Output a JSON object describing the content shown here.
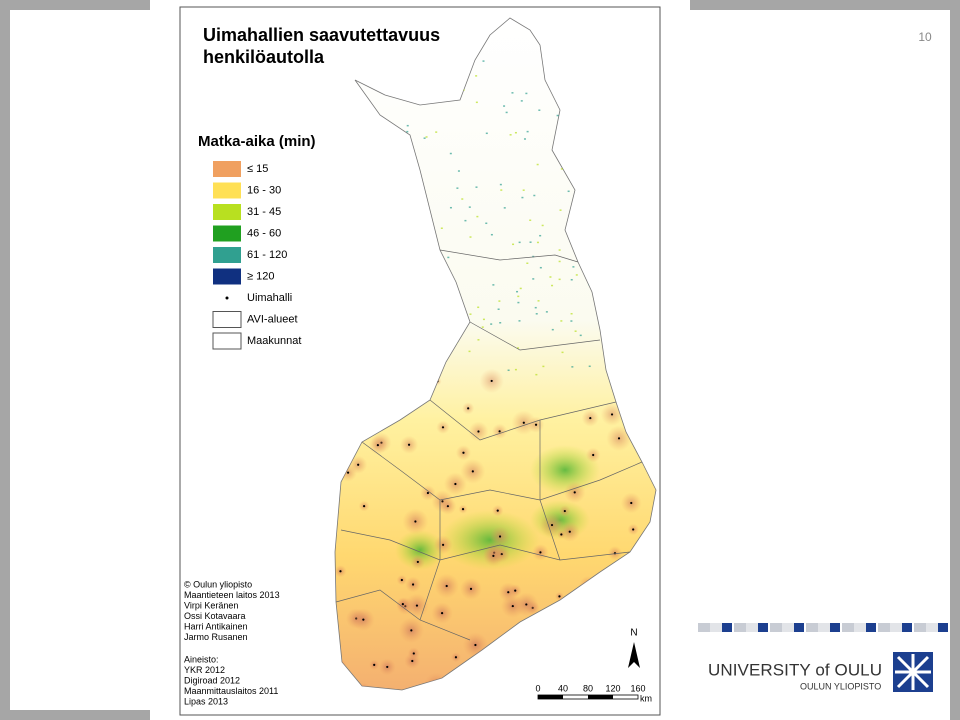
{
  "page_number": "10",
  "map": {
    "title": [
      "Uimahallien saavutettavuus",
      "henkilöautolla"
    ],
    "legend": {
      "title": "Matka-aika (min)",
      "items": [
        {
          "label": "≤ 15",
          "color": "#f0a060"
        },
        {
          "label": "16 - 30",
          "color": "#ffe055"
        },
        {
          "label": "31 - 45",
          "color": "#b8e020"
        },
        {
          "label": "46 - 60",
          "color": "#20a020"
        },
        {
          "label": "61 - 120",
          "color": "#30a090"
        },
        {
          "label": "≥ 120",
          "color": "#103080"
        },
        {
          "label": "Uimahalli"
        },
        {
          "label": "AVI-alueet"
        },
        {
          "label": "Maakunnat"
        }
      ]
    },
    "credits": [
      "© Oulun yliopisto",
      "Maantieteen laitos 2013",
      "Virpi Keränen",
      "Ossi Kotavaara",
      "Harri Antikainen",
      "Jarmo Rusanen"
    ],
    "sources_title": "Aineisto:",
    "sources": [
      "YKR 2012",
      "Digiroad 2012",
      "Maanmittauslaitos 2011",
      "Lipas 2013"
    ],
    "north": "N",
    "scale": {
      "labels": [
        "0",
        "40",
        "80",
        "120",
        "160"
      ],
      "unit": "km"
    }
  },
  "logo": {
    "name": "UNIVERSITY of OULU",
    "subname": "OULUN YLIOPISTO"
  }
}
